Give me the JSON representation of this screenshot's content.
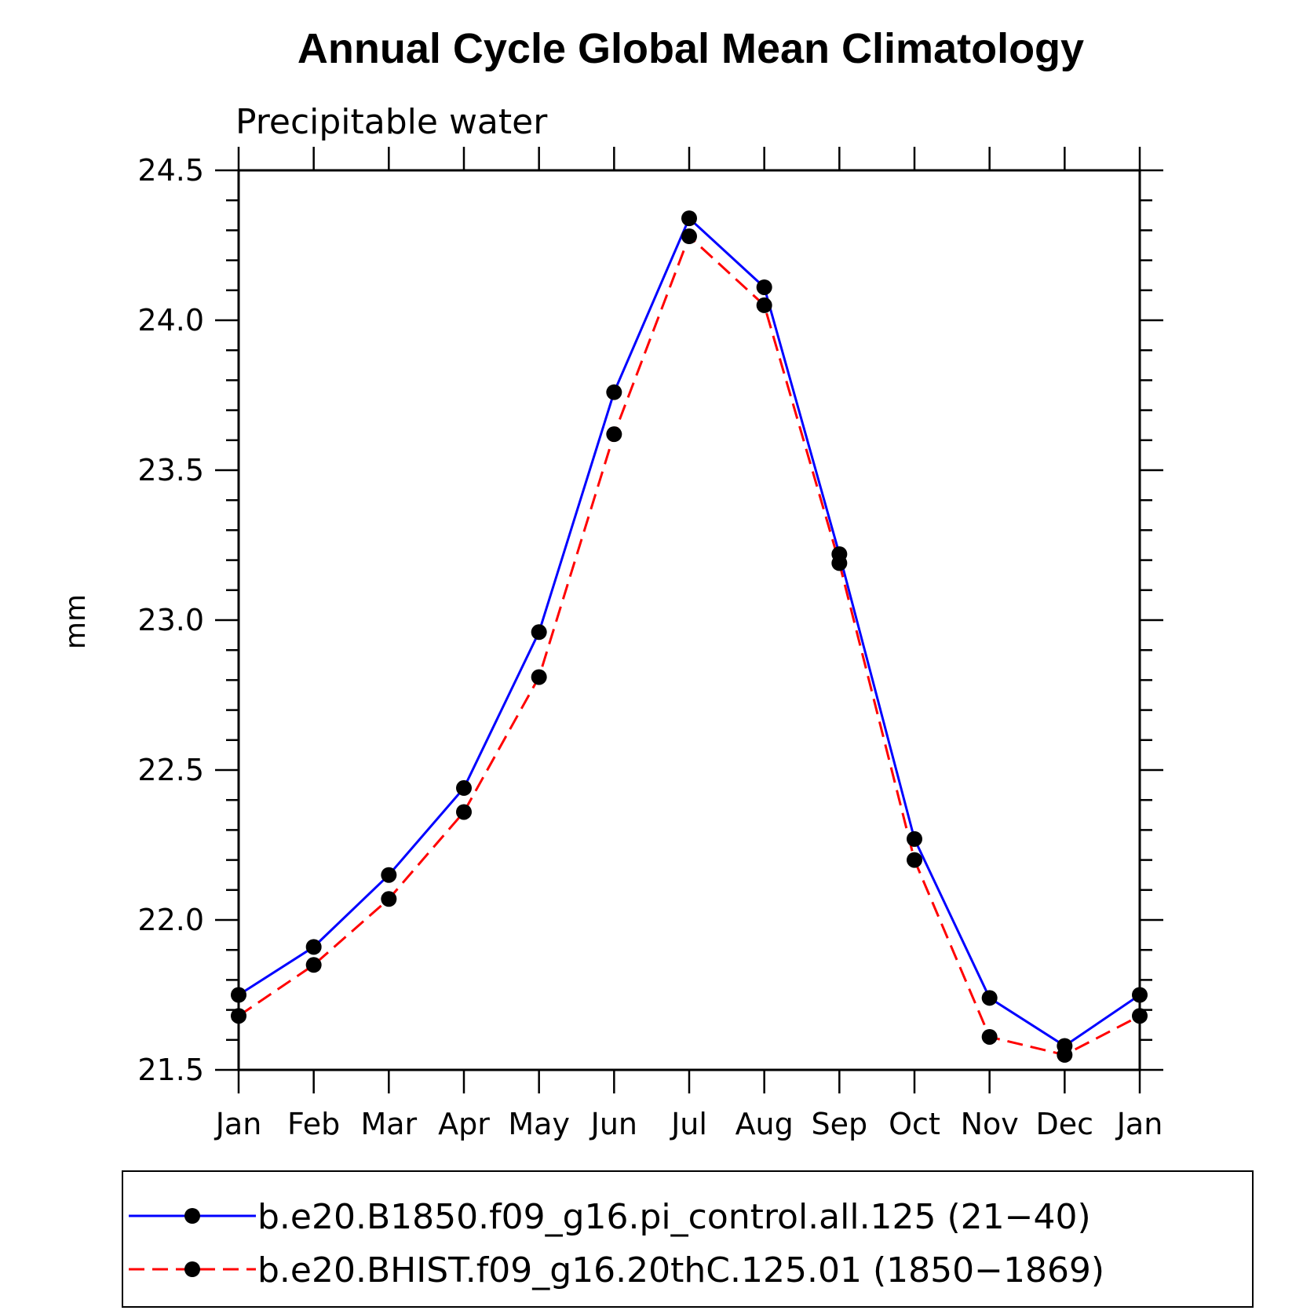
{
  "chart_data": {
    "type": "line",
    "title": "Annual Cycle Global Mean Climatology",
    "subtitle": "Precipitable water",
    "xlabel": "",
    "ylabel": "mm",
    "categories": [
      "Jan",
      "Feb",
      "Mar",
      "Apr",
      "May",
      "Jun",
      "Jul",
      "Aug",
      "Sep",
      "Oct",
      "Nov",
      "Dec",
      "Jan"
    ],
    "ylim": [
      21.5,
      24.5
    ],
    "yticks": [
      "21.5",
      "22.0",
      "22.5",
      "23.0",
      "23.5",
      "24.0",
      "24.5"
    ],
    "grid": false,
    "legend_position": "bottom",
    "series": [
      {
        "name": "b.e20.B1850.f09_g16.pi_control.all.125 (21−40)",
        "color": "#0000ff",
        "line_style": "solid",
        "marker": "filled-circle",
        "values": [
          21.75,
          21.91,
          22.15,
          22.44,
          22.96,
          23.76,
          24.34,
          24.11,
          23.22,
          22.27,
          21.74,
          21.58,
          21.75
        ]
      },
      {
        "name": "b.e20.BHIST.f09_g16.20thC.125.01 (1850−1869)",
        "color": "#ff0000",
        "line_style": "dashed",
        "marker": "filled-circle",
        "values": [
          21.68,
          21.85,
          22.07,
          22.36,
          22.81,
          23.62,
          24.28,
          24.05,
          23.19,
          22.2,
          21.61,
          21.55,
          21.68
        ]
      }
    ]
  }
}
